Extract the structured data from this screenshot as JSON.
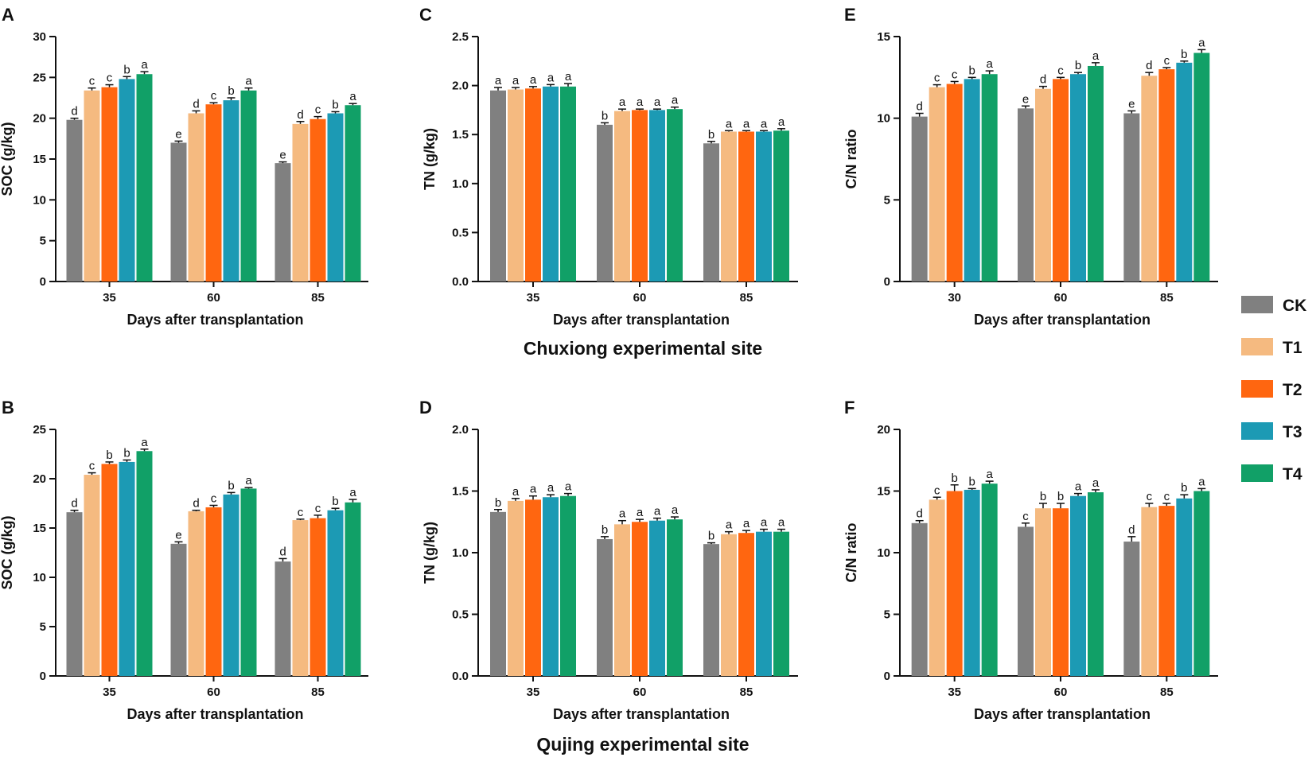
{
  "figure": {
    "site_titles": [
      "Chuxiong experimental site",
      "Qujing experimental site"
    ]
  },
  "legend": {
    "entries": [
      {
        "name": "CK",
        "color": "#808080"
      },
      {
        "name": "T1",
        "color": "#F5BA80"
      },
      {
        "name": "T2",
        "color": "#FF6610"
      },
      {
        "name": "T3",
        "color": "#1C9AB4"
      },
      {
        "name": "T4",
        "color": "#11A067"
      }
    ]
  },
  "chart_data": [
    {
      "panel": "A",
      "type": "bar",
      "site": "Chuxiong experimental site",
      "xlabel": "Days after transplantation",
      "ylabel": "SOC (g/kg)",
      "ylim": [
        0,
        30
      ],
      "yticks": [
        0,
        5,
        10,
        15,
        20,
        25,
        30
      ],
      "categories": [
        "35",
        "60",
        "85"
      ],
      "series": [
        {
          "name": "CK",
          "values": [
            19.8,
            17.0,
            14.5
          ],
          "errors": [
            0.2,
            0.2,
            0.15
          ],
          "letters": [
            "d",
            "e",
            "e"
          ]
        },
        {
          "name": "T1",
          "values": [
            23.4,
            20.6,
            19.3
          ],
          "errors": [
            0.3,
            0.3,
            0.3
          ],
          "letters": [
            "c",
            "d",
            "d"
          ]
        },
        {
          "name": "T2",
          "values": [
            23.8,
            21.7,
            19.9
          ],
          "errors": [
            0.3,
            0.2,
            0.3
          ],
          "letters": [
            "c",
            "c",
            "c"
          ]
        },
        {
          "name": "T3",
          "values": [
            24.8,
            22.2,
            20.6
          ],
          "errors": [
            0.3,
            0.3,
            0.2
          ],
          "letters": [
            "b",
            "b",
            "b"
          ]
        },
        {
          "name": "T4",
          "values": [
            25.4,
            23.4,
            21.6
          ],
          "errors": [
            0.3,
            0.3,
            0.2
          ],
          "letters": [
            "a",
            "a",
            "a"
          ]
        }
      ]
    },
    {
      "panel": "C",
      "type": "bar",
      "site": "Chuxiong experimental site",
      "xlabel": "Days after transplantation",
      "ylabel": "TN (g/kg)",
      "ylim": [
        0,
        2.5
      ],
      "yticks": [
        0.0,
        0.5,
        1.0,
        1.5,
        2.0,
        2.5
      ],
      "categories": [
        "35",
        "60",
        "85"
      ],
      "series": [
        {
          "name": "CK",
          "values": [
            1.95,
            1.6,
            1.41
          ],
          "errors": [
            0.03,
            0.02,
            0.02
          ],
          "letters": [
            "a",
            "b",
            "b"
          ]
        },
        {
          "name": "T1",
          "values": [
            1.96,
            1.74,
            1.53
          ],
          "errors": [
            0.02,
            0.02,
            0.01
          ],
          "letters": [
            "a",
            "a",
            "a"
          ]
        },
        {
          "name": "T2",
          "values": [
            1.97,
            1.75,
            1.53
          ],
          "errors": [
            0.02,
            0.01,
            0.01
          ],
          "letters": [
            "a",
            "a",
            "a"
          ]
        },
        {
          "name": "T3",
          "values": [
            1.99,
            1.75,
            1.53
          ],
          "errors": [
            0.02,
            0.01,
            0.01
          ],
          "letters": [
            "a",
            "a",
            "a"
          ]
        },
        {
          "name": "T4",
          "values": [
            1.99,
            1.76,
            1.54
          ],
          "errors": [
            0.03,
            0.02,
            0.02
          ],
          "letters": [
            "a",
            "a",
            "a"
          ]
        }
      ]
    },
    {
      "panel": "E",
      "type": "bar",
      "site": "Chuxiong experimental site",
      "xlabel": "Days after transplantation",
      "ylabel": "C/N ratio",
      "ylim": [
        0,
        15
      ],
      "yticks": [
        0,
        5,
        10,
        15
      ],
      "categories": [
        "30",
        "60",
        "85"
      ],
      "series": [
        {
          "name": "CK",
          "values": [
            10.1,
            10.6,
            10.3
          ],
          "errors": [
            0.2,
            0.15,
            0.15
          ],
          "letters": [
            "d",
            "e",
            "e"
          ]
        },
        {
          "name": "T1",
          "values": [
            11.9,
            11.8,
            12.6
          ],
          "errors": [
            0.15,
            0.15,
            0.2
          ],
          "letters": [
            "c",
            "d",
            "d"
          ]
        },
        {
          "name": "T2",
          "values": [
            12.1,
            12.4,
            13.0
          ],
          "errors": [
            0.15,
            0.1,
            0.1
          ],
          "letters": [
            "c",
            "c",
            "c"
          ]
        },
        {
          "name": "T3",
          "values": [
            12.4,
            12.7,
            13.4
          ],
          "errors": [
            0.1,
            0.1,
            0.1
          ],
          "letters": [
            "b",
            "b",
            "b"
          ]
        },
        {
          "name": "T4",
          "values": [
            12.7,
            13.2,
            14.0
          ],
          "errors": [
            0.2,
            0.2,
            0.2
          ],
          "letters": [
            "a",
            "a",
            "a"
          ]
        }
      ]
    },
    {
      "panel": "B",
      "type": "bar",
      "site": "Qujing experimental site",
      "xlabel": "Days after transplantation",
      "ylabel": "SOC (g/kg)",
      "ylim": [
        0,
        25
      ],
      "yticks": [
        0,
        5,
        10,
        15,
        20,
        25
      ],
      "categories": [
        "35",
        "60",
        "85"
      ],
      "series": [
        {
          "name": "CK",
          "values": [
            16.6,
            13.4,
            11.6
          ],
          "errors": [
            0.2,
            0.2,
            0.3
          ],
          "letters": [
            "d",
            "e",
            "d"
          ]
        },
        {
          "name": "T1",
          "values": [
            20.4,
            16.7,
            15.8
          ],
          "errors": [
            0.2,
            0.1,
            0.1
          ],
          "letters": [
            "c",
            "d",
            "c"
          ]
        },
        {
          "name": "T2",
          "values": [
            21.5,
            17.1,
            16.0
          ],
          "errors": [
            0.2,
            0.2,
            0.3
          ],
          "letters": [
            "b",
            "c",
            "c"
          ]
        },
        {
          "name": "T3",
          "values": [
            21.7,
            18.4,
            16.8
          ],
          "errors": [
            0.2,
            0.2,
            0.2
          ],
          "letters": [
            "b",
            "b",
            "b"
          ]
        },
        {
          "name": "T4",
          "values": [
            22.8,
            19.0,
            17.6
          ],
          "errors": [
            0.2,
            0.1,
            0.3
          ],
          "letters": [
            "a",
            "a",
            "a"
          ]
        }
      ]
    },
    {
      "panel": "D",
      "type": "bar",
      "site": "Qujing experimental site",
      "xlabel": "Days after transplantation",
      "ylabel": "TN (g/kg)",
      "ylim": [
        0,
        2.0
      ],
      "yticks": [
        0.0,
        0.5,
        1.0,
        1.5,
        2.0
      ],
      "categories": [
        "35",
        "60",
        "85"
      ],
      "series": [
        {
          "name": "CK",
          "values": [
            1.33,
            1.11,
            1.07
          ],
          "errors": [
            0.02,
            0.02,
            0.01
          ],
          "letters": [
            "b",
            "b",
            "b"
          ]
        },
        {
          "name": "T1",
          "values": [
            1.42,
            1.23,
            1.15
          ],
          "errors": [
            0.02,
            0.03,
            0.02
          ],
          "letters": [
            "a",
            "a",
            "a"
          ]
        },
        {
          "name": "T2",
          "values": [
            1.43,
            1.25,
            1.16
          ],
          "errors": [
            0.03,
            0.02,
            0.02
          ],
          "letters": [
            "a",
            "a",
            "a"
          ]
        },
        {
          "name": "T3",
          "values": [
            1.45,
            1.26,
            1.17
          ],
          "errors": [
            0.02,
            0.02,
            0.02
          ],
          "letters": [
            "a",
            "a",
            "a"
          ]
        },
        {
          "name": "T4",
          "values": [
            1.46,
            1.27,
            1.17
          ],
          "errors": [
            0.02,
            0.02,
            0.02
          ],
          "letters": [
            "a",
            "a",
            "a"
          ]
        }
      ]
    },
    {
      "panel": "F",
      "type": "bar",
      "site": "Qujing experimental site",
      "xlabel": "Days after transplantation",
      "ylabel": "C/N ratio",
      "ylim": [
        0,
        20
      ],
      "yticks": [
        0,
        5,
        10,
        15,
        20
      ],
      "categories": [
        "35",
        "60",
        "85"
      ],
      "series": [
        {
          "name": "CK",
          "values": [
            12.4,
            12.1,
            10.9
          ],
          "errors": [
            0.2,
            0.3,
            0.4
          ],
          "letters": [
            "d",
            "c",
            "d"
          ]
        },
        {
          "name": "T1",
          "values": [
            14.3,
            13.6,
            13.7
          ],
          "errors": [
            0.2,
            0.4,
            0.3
          ],
          "letters": [
            "c",
            "b",
            "c"
          ]
        },
        {
          "name": "T2",
          "values": [
            15.0,
            13.6,
            13.8
          ],
          "errors": [
            0.5,
            0.4,
            0.2
          ],
          "letters": [
            "b",
            "b",
            "c"
          ]
        },
        {
          "name": "T3",
          "values": [
            15.1,
            14.6,
            14.4
          ],
          "errors": [
            0.1,
            0.2,
            0.3
          ],
          "letters": [
            "b",
            "a",
            "b"
          ]
        },
        {
          "name": "T4",
          "values": [
            15.6,
            14.9,
            15.0
          ],
          "errors": [
            0.2,
            0.2,
            0.2
          ],
          "letters": [
            "a",
            "a",
            "a"
          ]
        }
      ]
    }
  ]
}
